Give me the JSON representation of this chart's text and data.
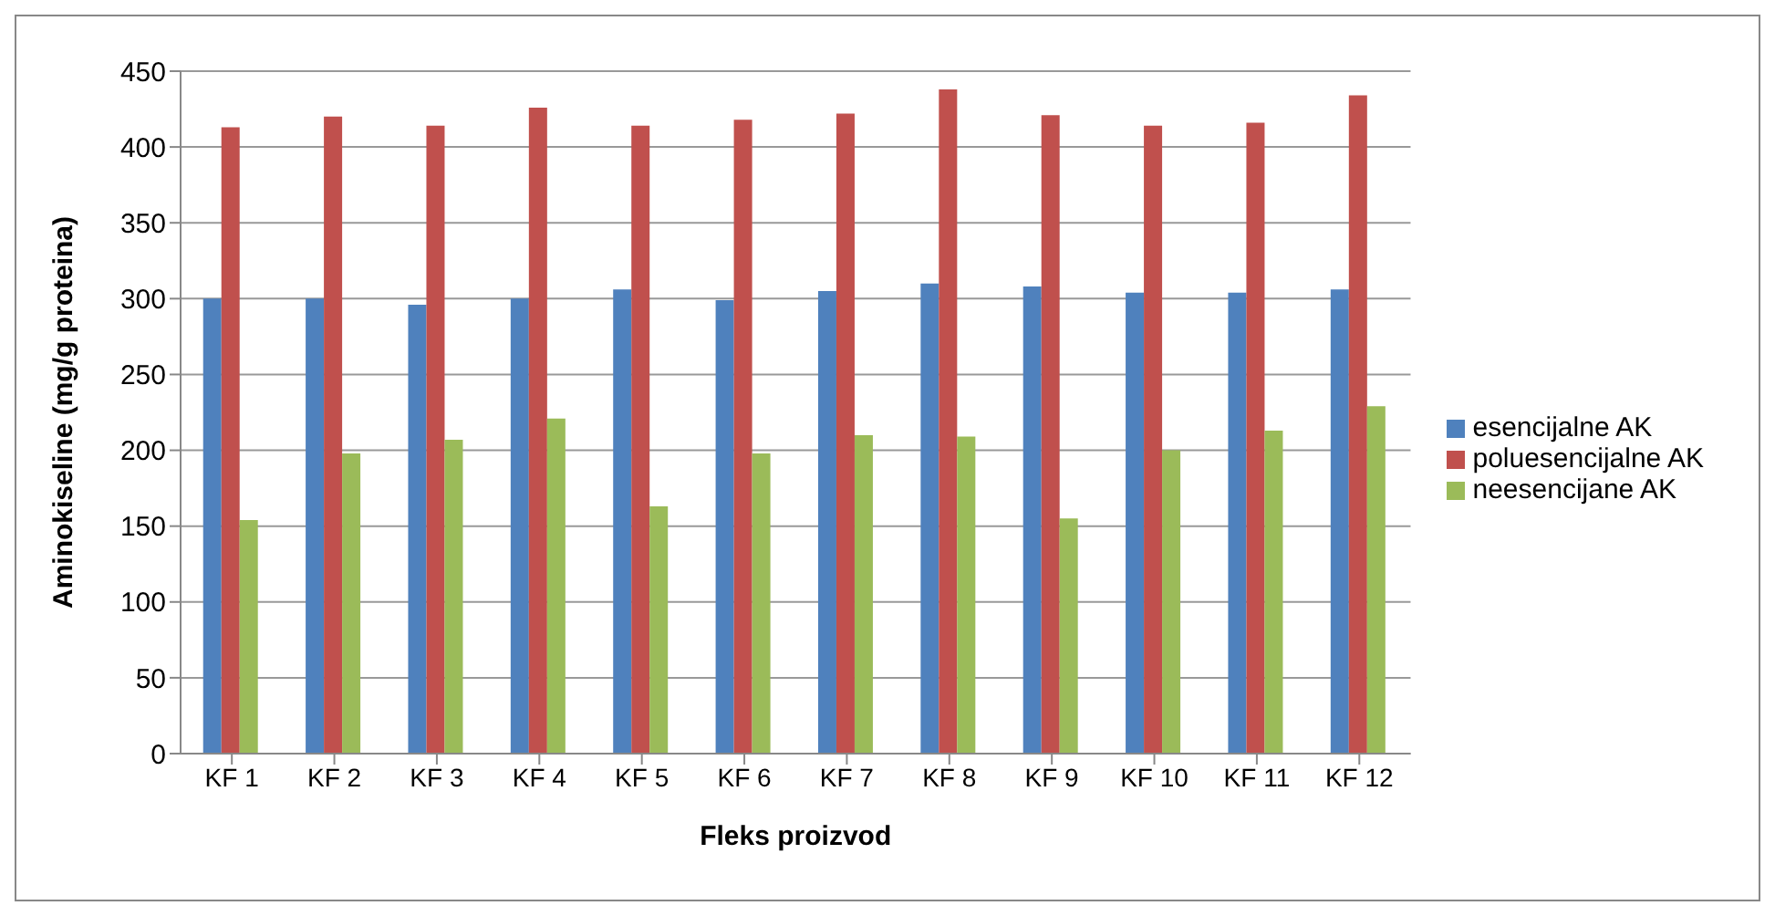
{
  "chart_data": {
    "type": "bar",
    "xlabel": "Fleks proizvod",
    "ylabel": "Aminokiseline (mg/g proteina)",
    "categories": [
      "KF 1",
      "KF 2",
      "KF 3",
      "KF 4",
      "KF 5",
      "KF 6",
      "KF 7",
      "KF 8",
      "KF 9",
      "KF 10",
      "KF 11",
      "KF 12"
    ],
    "series": [
      {
        "name": "esencijalne AK",
        "color": "#4f81bd",
        "values": [
          300,
          300,
          296,
          300,
          306,
          299,
          305,
          310,
          308,
          304,
          304,
          306
        ]
      },
      {
        "name": "poluesencijalne AK",
        "color": "#c0504d",
        "values": [
          413,
          420,
          414,
          426,
          414,
          418,
          422,
          438,
          421,
          414,
          416,
          434
        ]
      },
      {
        "name": "neesencijane AK",
        "color": "#9bbb59",
        "values": [
          154,
          198,
          207,
          221,
          163,
          198,
          210,
          209,
          155,
          200,
          213,
          229
        ]
      }
    ],
    "ylim": [
      0,
      450
    ],
    "yticks": [
      0,
      50,
      100,
      150,
      200,
      250,
      300,
      350,
      400,
      450
    ],
    "grid": "y",
    "legend": "right"
  }
}
